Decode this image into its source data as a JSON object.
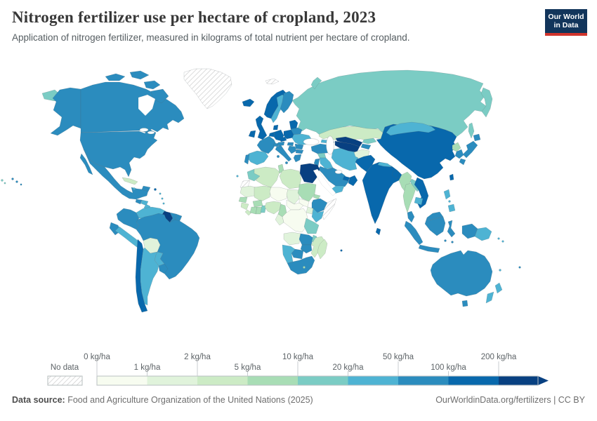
{
  "header": {
    "title": "Nitrogen fertilizer use per hectare of cropland, 2023",
    "subtitle": "Application of nitrogen fertilizer, measured in kilograms of total nutrient per hectare of cropland.",
    "logo": {
      "line1": "Our World",
      "line2": "in Data",
      "bg_color": "#12355b",
      "accent_color": "#d0342c"
    }
  },
  "legend": {
    "no_data_label": "No data",
    "ticks": [
      "0 kg/ha",
      "1 kg/ha",
      "2 kg/ha",
      "5 kg/ha",
      "10 kg/ha",
      "20 kg/ha",
      "50 kg/ha",
      "100 kg/ha",
      "200 kg/ha"
    ]
  },
  "footer": {
    "datasource_label": "Data source:",
    "datasource_text": " Food and Agriculture Organization of the United Nations (2025)",
    "credit": "OurWorldinData.org/fertilizers | CC BY"
  },
  "chart_data": {
    "type": "choropleth_map",
    "title": "Nitrogen fertilizer use per hectare of cropland, 2023",
    "unit": "kg/ha",
    "bin_edges": [
      0,
      1,
      2,
      5,
      10,
      20,
      50,
      100,
      200
    ],
    "bin_labels": [
      "0-1",
      "1-2",
      "2-5",
      "5-10",
      "10-20",
      "20-50",
      "50-100",
      "100-200",
      "200+"
    ],
    "bin_colors": [
      "#f7fcf0",
      "#e0f3db",
      "#ccebc5",
      "#a8ddb5",
      "#7bccc4",
      "#4eb3d3",
      "#2b8cbe",
      "#0868ac",
      "#084081"
    ],
    "no_data_label": "No data",
    "countries": {
      "canada": 6,
      "united-states": 6,
      "greenland": "no_data",
      "mexico": 6,
      "guatemala": 6,
      "honduras": 5,
      "nicaragua": 5,
      "costa-rica": 7,
      "panama": 5,
      "cuba": 2,
      "jamaica": 5,
      "hispaniola": 6,
      "puerto-rico": 7,
      "lesser-antilles": 5,
      "colombia": 6,
      "venezuela": 5,
      "guyana": 8,
      "suriname": 6,
      "french-guiana": 6,
      "ecuador": 6,
      "peru": 5,
      "brazil": 6,
      "bolivia": 1,
      "paraguay": 5,
      "chile": 7,
      "argentina": 5,
      "uruguay": 6,
      "iceland": 7,
      "norway": 7,
      "sweden": 5,
      "finland": 6,
      "denmark": 7,
      "united-kingdom": 7,
      "ireland": 7,
      "netherlands-belgium": 7,
      "germany": 7,
      "france": 6,
      "spain": 5,
      "portugal": 6,
      "switzerland": 6,
      "austria": 6,
      "czechia": 7,
      "poland": 7,
      "baltics": 7,
      "belarus": 6,
      "ukraine": 5,
      "romania": 6,
      "hungary": 6,
      "balkans": 6,
      "bulgaria": 6,
      "greece": 6,
      "italy": 6,
      "russia": 4,
      "svalbard": "no_data",
      "turkey": 6,
      "georgia": 5,
      "azerbaijan": 6,
      "syria": 4,
      "iraq": 5,
      "israel-jordan": 6,
      "iran": 5,
      "saudi-arabia": 6,
      "uae-qatar": 7,
      "oman": 7,
      "yemen": 5,
      "kazakhstan": 2,
      "uzbekistan": 8,
      "turkmenistan": 8,
      "kyrgyzstan": 4,
      "tajikistan": 6,
      "afghanistan": 1,
      "pakistan": 7,
      "india": 7,
      "nepal": 5,
      "bangladesh": 7,
      "sri-lanka": 7,
      "myanmar": 3,
      "thailand": 3,
      "laos": 4,
      "vietnam": 7,
      "cambodia": 5,
      "malaysia": 6,
      "china": 7,
      "mongolia": 5,
      "north-korea": 3,
      "south-korea": 6,
      "japan": 6,
      "taiwan": 7,
      "philippines": 5,
      "indonesia": 6,
      "papua-new-guinea": 5,
      "solomon-islands": 5,
      "australia": 6,
      "new-zealand": 5,
      "new-caledonia": 5,
      "fiji": 6,
      "morocco": 4,
      "western-sahara": "no_data",
      "algeria": 2,
      "tunisia": 3,
      "libya": 2,
      "egypt": 8,
      "mauritania": 1,
      "mali": 2,
      "niger": 0,
      "chad": 1,
      "sudan": 3,
      "eritrea": 3,
      "ethiopia": 6,
      "somalia": "no_data",
      "senegal": 3,
      "guinea": 2,
      "sierra-leone": 2,
      "ivory-coast": 3,
      "ghana": 3,
      "togo-benin": 4,
      "burkina-faso": 3,
      "nigeria": 2,
      "cameroon": 3,
      "central-african-republic": 0,
      "south-sudan": 0,
      "uganda": 1,
      "kenya": 5,
      "dr-congo": 0,
      "congo-gabon": 1,
      "tanzania": 4,
      "angola": 1,
      "zambia": 6,
      "malawi": 4,
      "mozambique": 2,
      "zimbabwe": 6,
      "botswana": 6,
      "namibia": 5,
      "south-africa": 6,
      "lesotho": 3,
      "madagascar": 2,
      "mauritius": 7,
      "canary-islands": 5
    }
  }
}
